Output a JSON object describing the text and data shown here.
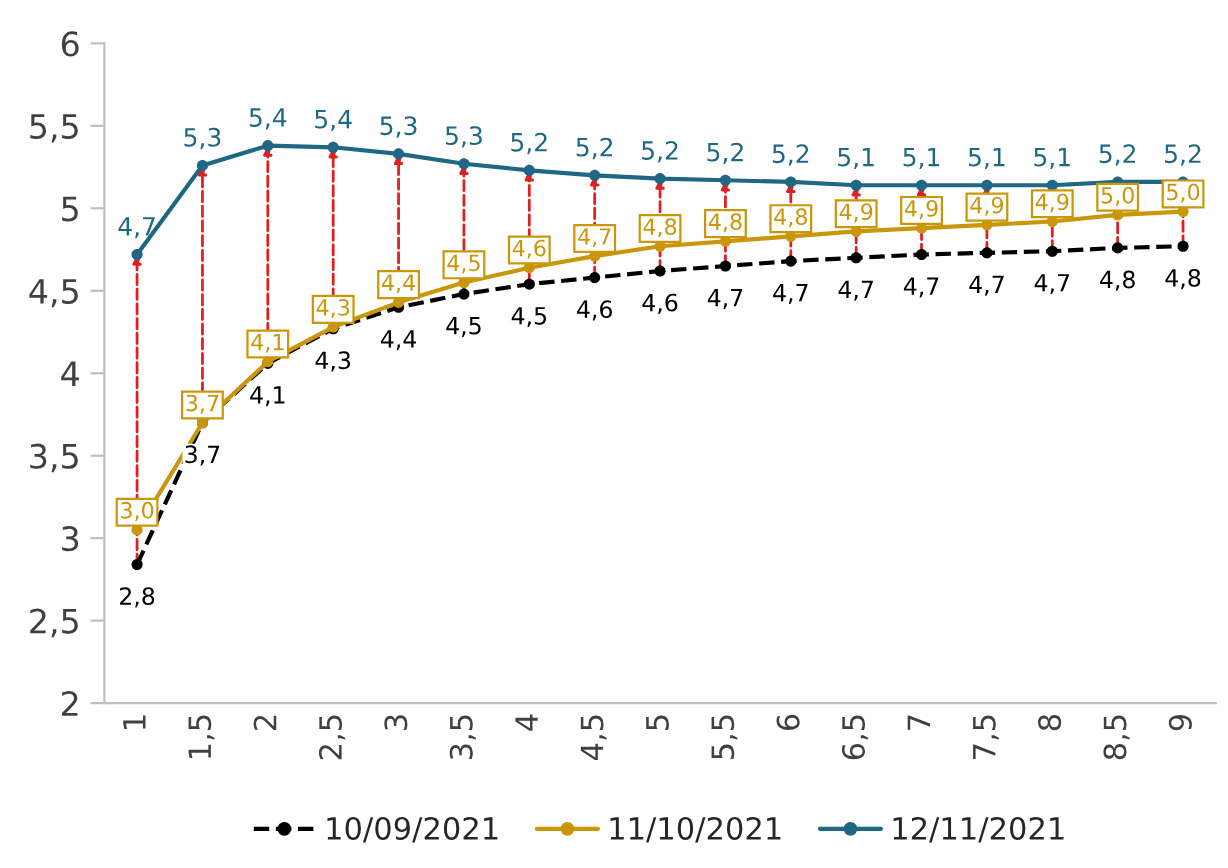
{
  "chart_data": {
    "type": "line",
    "categories": [
      "1",
      "1,5",
      "2",
      "2,5",
      "3",
      "3,5",
      "4",
      "4,5",
      "5",
      "5,5",
      "6",
      "6,5",
      "7",
      "7,5",
      "8",
      "8,5",
      "9"
    ],
    "series": [
      {
        "name": "10/09/2021",
        "color": "#000000",
        "line_style": "dashed",
        "values": [
          2.84,
          3.7,
          4.06,
          4.27,
          4.4,
          4.48,
          4.54,
          4.58,
          4.62,
          4.65,
          4.68,
          4.7,
          4.72,
          4.73,
          4.74,
          4.76,
          4.77
        ],
        "value_labels": [
          "2,8",
          "3,7",
          "4,1",
          "4,3",
          "4,4",
          "4,5",
          "4,5",
          "4,6",
          "4,6",
          "4,7",
          "4,7",
          "4,7",
          "4,7",
          "4,7",
          "4,7",
          "4,8",
          "4,8"
        ]
      },
      {
        "name": "11/10/2021",
        "color": "#c9960c",
        "line_style": "solid",
        "values": [
          3.05,
          3.7,
          4.07,
          4.28,
          4.43,
          4.55,
          4.64,
          4.71,
          4.77,
          4.8,
          4.83,
          4.86,
          4.88,
          4.9,
          4.92,
          4.96,
          4.98
        ],
        "value_labels": [
          "3,0",
          "3,7",
          "4,1",
          "4,3",
          "4,4",
          "4,5",
          "4,6",
          "4,7",
          "4,8",
          "4,8",
          "4,8",
          "4,9",
          "4,9",
          "4,9",
          "4,9",
          "5,0",
          "5,0"
        ]
      },
      {
        "name": "12/11/2021",
        "color": "#1f6783",
        "line_style": "solid",
        "values": [
          4.72,
          5.26,
          5.38,
          5.37,
          5.33,
          5.27,
          5.23,
          5.2,
          5.18,
          5.17,
          5.16,
          5.14,
          5.14,
          5.14,
          5.14,
          5.16,
          5.16
        ],
        "value_labels": [
          "4,7",
          "5,3",
          "5,4",
          "5,4",
          "5,3",
          "5,3",
          "5,2",
          "5,2",
          "5,2",
          "5,2",
          "5,2",
          "5,1",
          "5,1",
          "5,1",
          "5,1",
          "5,2",
          "5,2"
        ]
      }
    ],
    "ylim": [
      2,
      6
    ],
    "yticks": [
      2,
      {
        "value": 2.5,
        "label": "2,5"
      },
      3,
      {
        "value": 3.5,
        "label": "3,5"
      },
      4,
      {
        "value": 4.5,
        "label": "4,5"
      },
      5,
      {
        "value": 5.5,
        "label": "5,5"
      },
      6
    ],
    "marker": "circle",
    "grid": false,
    "legend": "bottom"
  }
}
